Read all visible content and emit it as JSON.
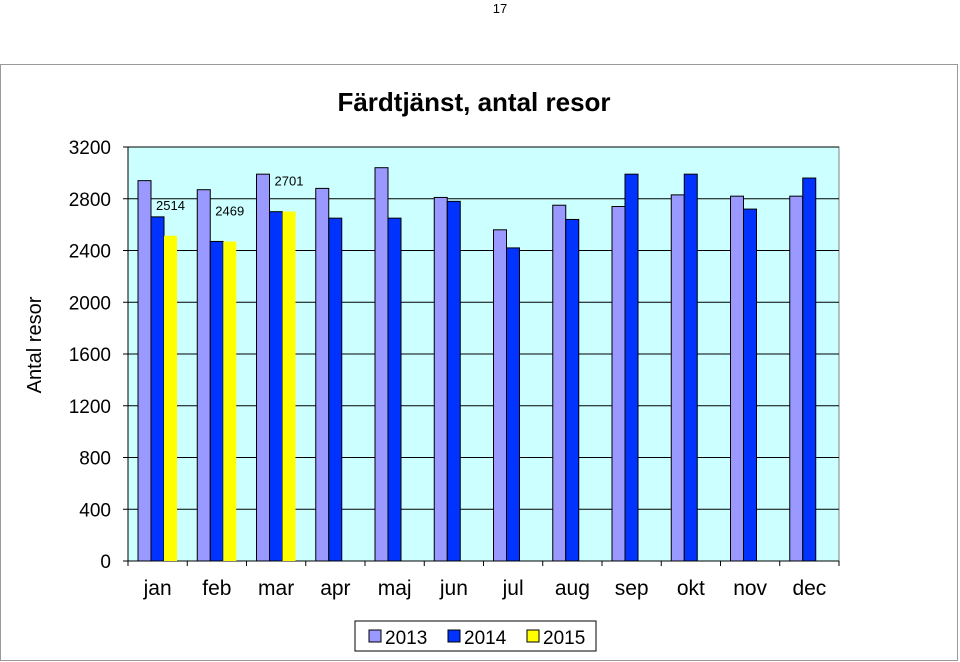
{
  "page": {
    "number": "17"
  },
  "chart_data": {
    "type": "bar",
    "title": "Färdtjänst, antal resor",
    "xlabel": "",
    "ylabel": "Antal resor",
    "ylim": [
      0,
      3200
    ],
    "yticks": [
      0,
      400,
      800,
      1200,
      1600,
      2000,
      2400,
      2800,
      3200
    ],
    "categories": [
      "jan",
      "feb",
      "mar",
      "apr",
      "maj",
      "jun",
      "jul",
      "aug",
      "sep",
      "okt",
      "nov",
      "dec"
    ],
    "series": [
      {
        "name": "2013",
        "color": "#9999ff",
        "values": [
          2940,
          2870,
          2990,
          2880,
          3040,
          2810,
          2560,
          2750,
          2740,
          2830,
          2820,
          2820
        ]
      },
      {
        "name": "2014",
        "color": "#0033ff",
        "values": [
          2660,
          2470,
          2700,
          2650,
          2650,
          2780,
          2420,
          2640,
          2990,
          2990,
          2720,
          2960
        ]
      },
      {
        "name": "2015",
        "color": "#ffff00",
        "values": [
          2514,
          2469,
          2701,
          null,
          null,
          null,
          null,
          null,
          null,
          null,
          null,
          null
        ]
      }
    ],
    "data_labels": [
      {
        "series": 2,
        "index": 0,
        "text": "2514"
      },
      {
        "series": 2,
        "index": 1,
        "text": "2469"
      },
      {
        "series": 2,
        "index": 2,
        "text": "2701"
      }
    ],
    "plot_background": "#ccffff",
    "grid": true,
    "legend": {
      "position": "bottom",
      "entries": [
        "2013",
        "2014",
        "2015"
      ]
    }
  }
}
